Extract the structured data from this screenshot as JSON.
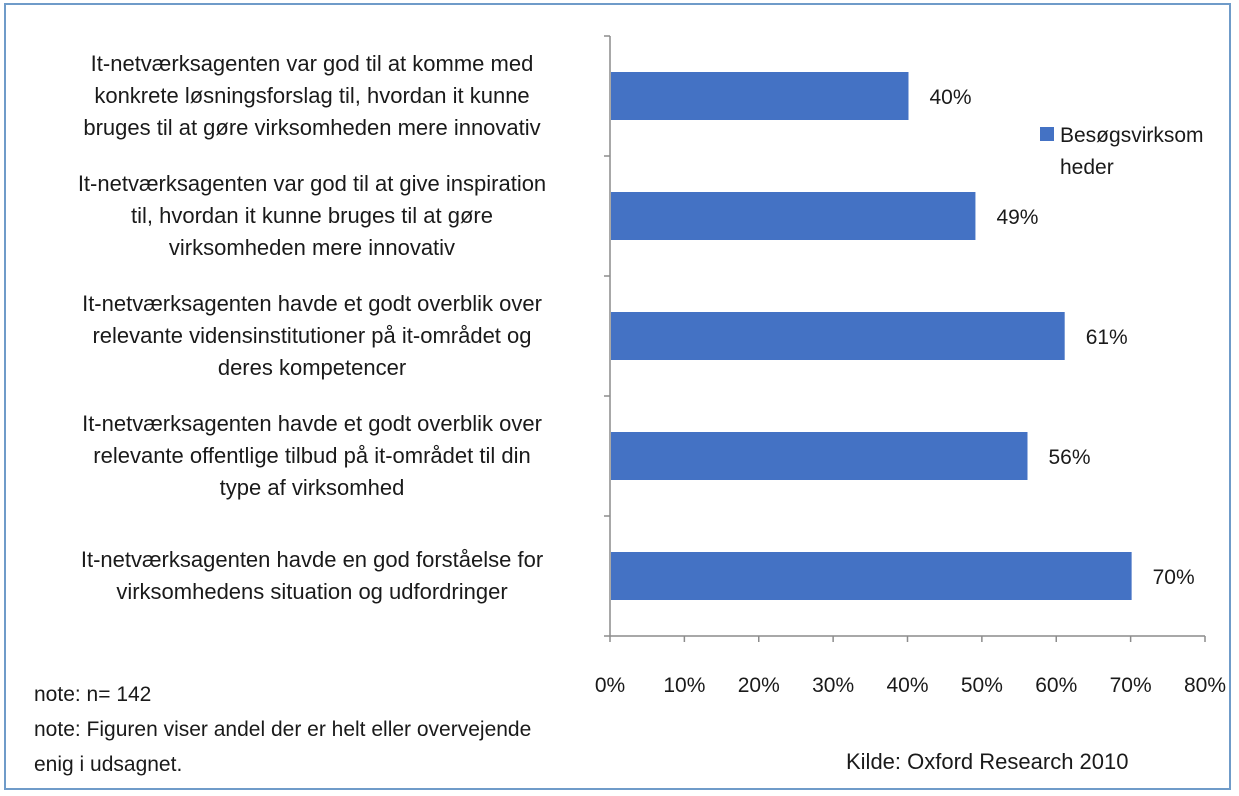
{
  "chart_data": {
    "type": "bar",
    "orientation": "horizontal",
    "categories": [
      "It-netværksagenten var god til at komme med konkrete løsningsforslag til, hvordan it kunne bruges til at gøre virksomheden mere innovativ",
      "It-netværksagenten var god til at give inspiration til, hvordan it kunne bruges til at gøre virksomheden mere innovativ",
      "It-netværksagenten havde et godt overblik over relevante vidensinstitutioner på it-området og deres kompetencer",
      "It-netværksagenten havde et godt overblik over relevante offentlige tilbud på it-området til din type af virksomhed",
      "It-netværksagenten havde en god forståelse for virksomhedens situation og udfordringer"
    ],
    "category_lines": [
      [
        "It-netværksagenten var god til at komme med",
        "konkrete løsningsforslag til, hvordan it kunne",
        "bruges til at gøre virksomheden mere innovativ"
      ],
      [
        "It-netværksagenten var god til at give inspiration",
        "til, hvordan it kunne bruges til at gøre",
        "virksomheden mere innovativ"
      ],
      [
        "It-netværksagenten havde et godt overblik over",
        "relevante vidensinstitutioner på it-området og",
        "deres kompetencer"
      ],
      [
        "It-netværksagenten havde et godt overblik over",
        "relevante offentlige tilbud på it-området til din",
        "type af virksomhed"
      ],
      [
        "It-netværksagenten havde en god forståelse for",
        "virksomhedens situation og udfordringer"
      ]
    ],
    "series": [
      {
        "name": "Besøgsvirksomheder",
        "values": [
          40,
          49,
          61,
          56,
          70
        ]
      }
    ],
    "data_labels": [
      "40%",
      "49%",
      "61%",
      "56%",
      "70%"
    ],
    "xlim": [
      0,
      80
    ],
    "xticks": [
      "0%",
      "10%",
      "20%",
      "30%",
      "40%",
      "50%",
      "60%",
      "70%",
      "80%"
    ],
    "grid": false,
    "legend_position": "right",
    "bar_color": "#4472c4"
  },
  "legend": {
    "line1": "Besøgsvirksom",
    "line2": "heder"
  },
  "notes": {
    "n": "note: n= 142",
    "line1": "note: Figuren viser andel der er helt eller overvejende",
    "line2": "enig i udsagnet."
  },
  "source": "Kilde: Oxford Research 2010"
}
